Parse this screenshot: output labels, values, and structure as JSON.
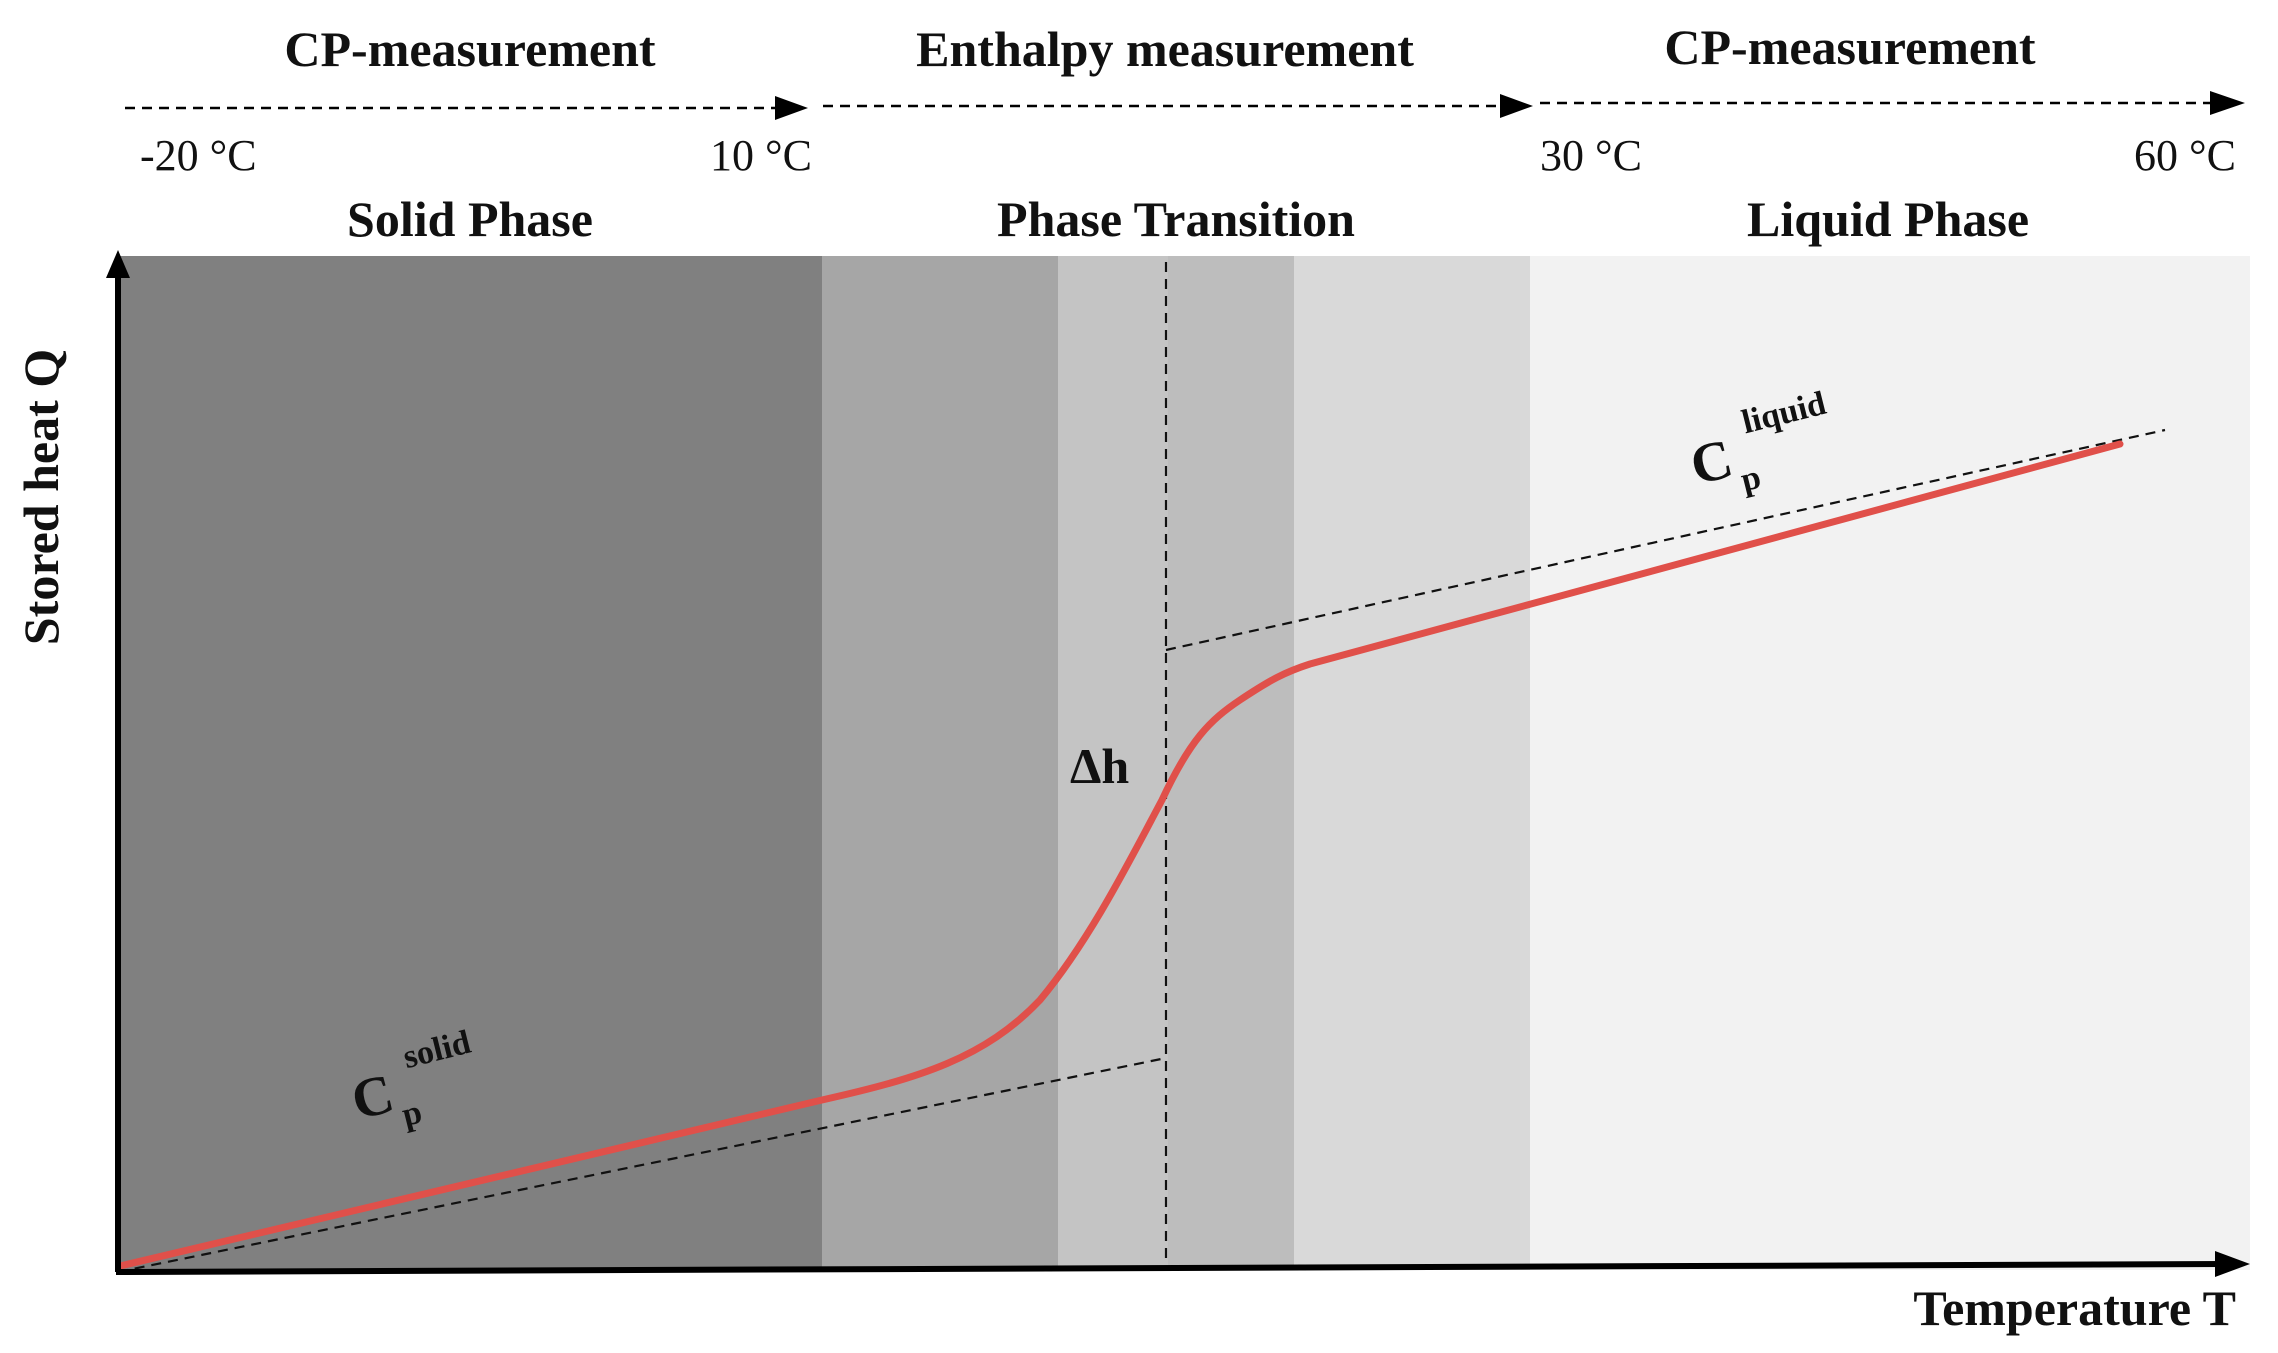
{
  "header": {
    "measurements": [
      {
        "label": "CP-measurement"
      },
      {
        "label": "Enthalpy measurement"
      },
      {
        "label": "CP-measurement"
      }
    ],
    "temperatures": [
      {
        "label": "-20 °C"
      },
      {
        "label": "10 °C"
      },
      {
        "label": "30 °C"
      },
      {
        "label": "60 °C"
      }
    ],
    "phases": [
      {
        "label": "Solid Phase"
      },
      {
        "label": "Phase Transition"
      },
      {
        "label": "Liquid Phase"
      }
    ]
  },
  "axes": {
    "y_label": "Stored heat Q",
    "x_label": "Temperature T"
  },
  "annotations": {
    "cp_main": "C",
    "cp_sub": "p",
    "cp_solid_sup": "solid",
    "cp_liquid_sup": "liquid",
    "delta_h": "Δh"
  },
  "colors": {
    "solid_zone": "#808080",
    "transition_zone_1": "#a6a6a6",
    "transition_zone_2": "#c4c4c4",
    "transition_zone_3": "#bdbdbd",
    "transition_zone_4": "#d9d9d9",
    "liquid_zone": "#f2f2f2",
    "curve": "#e0504a",
    "axis": "#000000"
  }
}
